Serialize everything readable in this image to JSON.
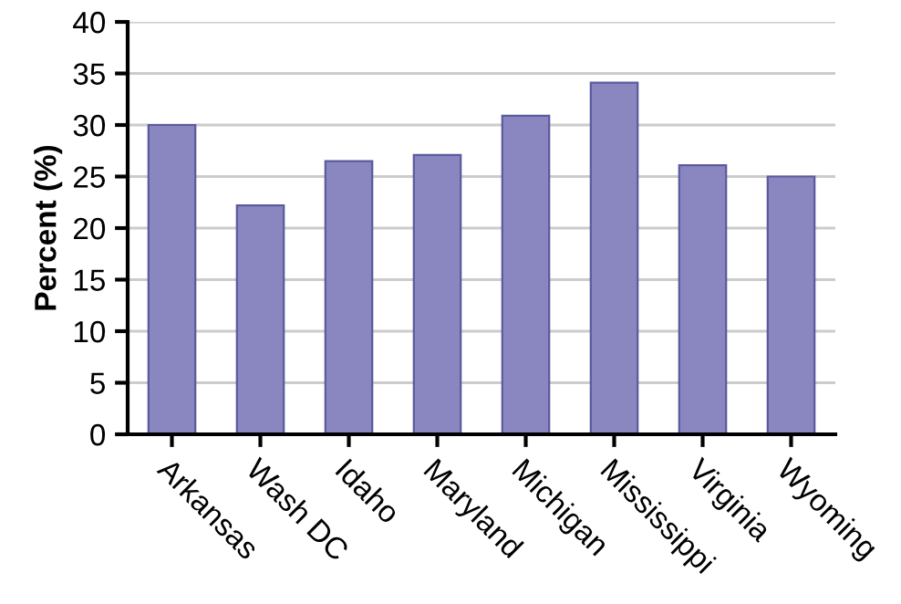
{
  "chart_data": {
    "type": "bar",
    "ylabel": "Percent (%)",
    "categories": [
      "Arkansas",
      "Wash DC",
      "Idaho",
      "Maryland",
      "Michigan",
      "Mississippi",
      "Virginia",
      "Wyoming"
    ],
    "values": [
      30,
      22.2,
      26.5,
      27.1,
      30.9,
      34.1,
      26.1,
      25
    ],
    "color": "#8a87c0",
    "ylim": [
      0,
      40
    ],
    "yticks": [
      0,
      5,
      10,
      15,
      20,
      25,
      30,
      35,
      40
    ],
    "grid": "y"
  }
}
